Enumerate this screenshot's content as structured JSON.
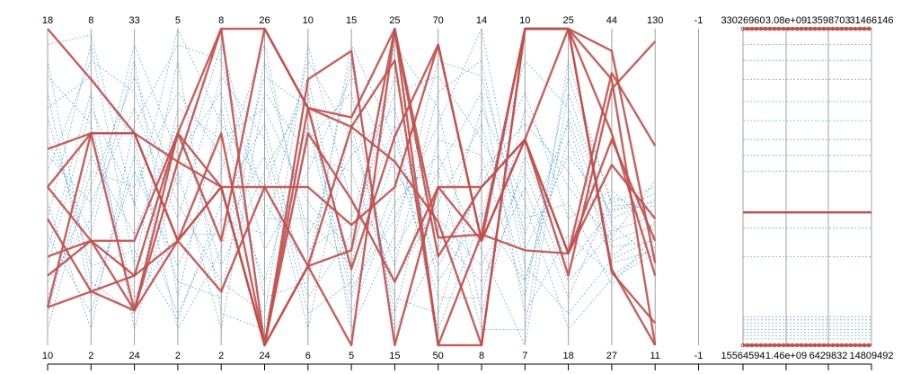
{
  "chart_data": {
    "type": "parallel-coordinates",
    "axes": [
      {
        "max": "18",
        "min": "10"
      },
      {
        "max": "8",
        "min": "2"
      },
      {
        "max": "33",
        "min": "24"
      },
      {
        "max": "5",
        "min": "2"
      },
      {
        "max": "8",
        "min": "2"
      },
      {
        "max": "26",
        "min": "24"
      },
      {
        "max": "10",
        "min": "6"
      },
      {
        "max": "15",
        "min": "5"
      },
      {
        "max": "25",
        "min": "15"
      },
      {
        "max": "70",
        "min": "50"
      },
      {
        "max": "14",
        "min": "8"
      },
      {
        "max": "10",
        "min": "7"
      },
      {
        "max": "25",
        "min": "18"
      },
      {
        "max": "44",
        "min": "27"
      },
      {
        "max": "130",
        "min": "11"
      },
      {
        "max": "-1",
        "min": "-1"
      },
      {
        "max": "33026960",
        "min": "15564594"
      },
      {
        "max": "3.08e+09",
        "min": "1.46e+09"
      },
      {
        "max": "13598703",
        "min": "6429832"
      },
      {
        "max": "31466146",
        "min": "14809492"
      }
    ],
    "highlighted_lines": [
      [
        1.0,
        0.84,
        0.67,
        0.58,
        1.0,
        1.0,
        0.75,
        0.72,
        1.0,
        0.28,
        0.5,
        0.65,
        0.22,
        0.81,
        0.96,
        null,
        1.0,
        1.0,
        1.0,
        1.0
      ],
      [
        0.5,
        0.67,
        0.67,
        0.33,
        0.5,
        0.0,
        0.67,
        0.46,
        0.2,
        0.5,
        0.33,
        1.0,
        1.0,
        0.67,
        0.22,
        null,
        1.0,
        1.0,
        1.0,
        1.0
      ],
      [
        0.22,
        0.33,
        0.33,
        0.67,
        0.5,
        0.0,
        0.25,
        0.3,
        1.0,
        0.0,
        0.0,
        1.0,
        1.0,
        0.24,
        0.0,
        null,
        0.42,
        0.42,
        0.42,
        0.42
      ],
      [
        0.4,
        0.17,
        0.22,
        0.67,
        1.0,
        0.0,
        0.75,
        0.24,
        0.66,
        0.95,
        0.33,
        0.65,
        0.29,
        0.57,
        0.4,
        null,
        0.0,
        0.0,
        0.0,
        0.0
      ],
      [
        0.12,
        0.67,
        0.11,
        0.33,
        0.17,
        0.5,
        0.25,
        0.0,
        1.0,
        0.34,
        0.35,
        1.0,
        1.0,
        0.23,
        0.07,
        null,
        0.0,
        0.0,
        0.0,
        0.0
      ],
      [
        0.28,
        0.33,
        0.11,
        0.67,
        0.33,
        1.0,
        0.75,
        0.69,
        0.58,
        0.39,
        0.0,
        1.0,
        1.0,
        0.84,
        0.0,
        null,
        1.0,
        1.0,
        1.0,
        1.0
      ],
      [
        0.62,
        0.67,
        0.67,
        0.33,
        0.5,
        0.5,
        0.5,
        0.38,
        0.5,
        0.95,
        0.33,
        0.65,
        0.29,
        0.65,
        0.33,
        null,
        0.42,
        0.42,
        0.42,
        0.42
      ],
      [
        0.12,
        0.17,
        0.11,
        0.58,
        0.5,
        0.0,
        0.84,
        0.93,
        0.0,
        0.5,
        0.5,
        0.65,
        1.0,
        0.93,
        0.26,
        null,
        0.0,
        0.0,
        0.0,
        0.0
      ],
      [
        0.5,
        0.33,
        0.22,
        0.33,
        0.67,
        0.0,
        0.25,
        0.69,
        0.9,
        0.0,
        0.35,
        0.3,
        0.29,
        0.86,
        0.63,
        null,
        1.0,
        1.0,
        1.0,
        1.0
      ]
    ],
    "background_lines": [
      [
        0.95,
        0.98,
        0.44,
        1.0,
        0.7,
        0.5,
        0.85,
        0.18,
        0.4,
        0.7,
        1.0,
        0.3,
        0.6,
        0.42,
        0.48,
        null,
        0.02,
        0.02,
        0.02,
        0.02
      ],
      [
        0.35,
        0.1,
        0.6,
        0.2,
        0.15,
        0.9,
        0.35,
        0.6,
        0.75,
        0.2,
        0.42,
        0.2,
        0.72,
        0.34,
        0.52,
        null,
        0.65,
        0.65,
        0.65,
        0.65
      ],
      [
        0.55,
        0.9,
        0.8,
        0.45,
        0.2,
        0.1,
        0.95,
        0.45,
        0.3,
        0.55,
        0.8,
        0.1,
        0.35,
        0.22,
        0.31,
        null,
        0.08,
        0.08,
        0.08,
        0.08
      ],
      [
        0.2,
        0.4,
        0.95,
        0.6,
        0.8,
        0.3,
        0.55,
        0.85,
        0.55,
        0.35,
        0.2,
        0.5,
        0.15,
        0.47,
        0.42,
        null,
        0.77,
        0.77,
        0.77,
        0.77
      ],
      [
        0.72,
        0.25,
        0.3,
        0.08,
        0.45,
        0.7,
        0.15,
        0.35,
        0.8,
        0.85,
        0.65,
        0.4,
        0.45,
        0.19,
        0.35,
        null,
        0.37,
        0.37,
        0.37,
        0.37
      ],
      [
        0.05,
        0.55,
        0.5,
        0.8,
        0.6,
        0.2,
        0.7,
        0.1,
        0.45,
        0.6,
        0.3,
        0.0,
        0.8,
        0.38,
        0.27,
        null,
        0.04,
        0.04,
        0.04,
        0.04
      ],
      [
        0.85,
        0.7,
        0.15,
        0.35,
        0.35,
        0.6,
        0.05,
        0.7,
        0.15,
        0.1,
        0.55,
        0.7,
        0.55,
        0.28,
        0.39,
        null,
        0.9,
        0.9,
        0.9,
        0.9
      ],
      [
        0.45,
        0.05,
        0.7,
        0.95,
        0.9,
        0.4,
        0.4,
        0.25,
        0.95,
        0.75,
        0.1,
        0.6,
        0.25,
        0.43,
        0.44,
        null,
        0.55,
        0.55,
        0.55,
        0.55
      ],
      [
        0.3,
        0.8,
        0.05,
        0.55,
        0.05,
        0.8,
        0.6,
        0.55,
        0.2,
        0.45,
        0.7,
        0.2,
        0.65,
        0.31,
        0.33,
        null,
        0.06,
        0.06,
        0.06,
        0.06
      ],
      [
        0.65,
        0.35,
        0.9,
        0.15,
        0.75,
        0.15,
        0.2,
        0.95,
        0.65,
        0.25,
        0.5,
        0.8,
        0.4,
        0.49,
        0.36,
        null,
        0.84,
        0.84,
        0.84,
        0.84
      ],
      [
        0.1,
        0.6,
        0.35,
        0.7,
        0.25,
        0.55,
        0.8,
        0.05,
        0.35,
        0.9,
        0.85,
        0.35,
        0.7,
        0.26,
        0.3,
        null,
        0.03,
        0.03,
        0.03,
        0.03
      ],
      [
        0.8,
        0.15,
        0.55,
        0.25,
        0.55,
        0.95,
        0.3,
        0.4,
        0.85,
        0.4,
        0.25,
        0.55,
        0.2,
        0.36,
        0.41,
        null,
        0.71,
        0.71,
        0.71,
        0.71
      ],
      [
        0.4,
        0.95,
        0.25,
        0.9,
        0.1,
        0.05,
        0.65,
        0.8,
        0.1,
        0.65,
        0.6,
        0.15,
        0.85,
        0.45,
        0.5,
        null,
        0.07,
        0.07,
        0.07,
        0.07
      ],
      [
        0.6,
        0.45,
        0.75,
        0.4,
        0.85,
        0.65,
        0.1,
        0.2,
        0.6,
        0.15,
        0.15,
        0.75,
        0.5,
        0.33,
        0.38,
        null,
        0.28,
        0.28,
        0.28,
        0.28
      ],
      [
        0.25,
        0.75,
        0.45,
        0.1,
        0.4,
        0.35,
        0.9,
        0.65,
        0.25,
        0.8,
        0.9,
        0.25,
        0.1,
        0.27,
        0.34,
        null,
        0.05,
        0.05,
        0.05,
        0.05
      ],
      [
        0.9,
        0.2,
        0.1,
        0.75,
        0.65,
        0.75,
        0.45,
        0.3,
        0.7,
        0.05,
        0.4,
        0.9,
        0.75,
        0.4,
        0.46,
        null,
        0.6,
        0.6,
        0.6,
        0.6
      ],
      [
        0.15,
        0.5,
        0.85,
        0.5,
        0.95,
        0.45,
        0.25,
        0.9,
        0.05,
        0.3,
        0.75,
        0.45,
        0.05,
        0.21,
        0.29,
        null,
        0.09,
        0.09,
        0.09,
        0.09
      ],
      [
        0.75,
        0.85,
        0.65,
        0.05,
        0.3,
        0.85,
        0.75,
        0.15,
        0.5,
        0.55,
        0.05,
        0.05,
        0.9,
        0.44,
        0.45,
        null,
        0.95,
        0.95,
        0.95,
        0.95
      ]
    ],
    "highlight_color": "#c0504d",
    "background_color": "#5aa0d6"
  }
}
